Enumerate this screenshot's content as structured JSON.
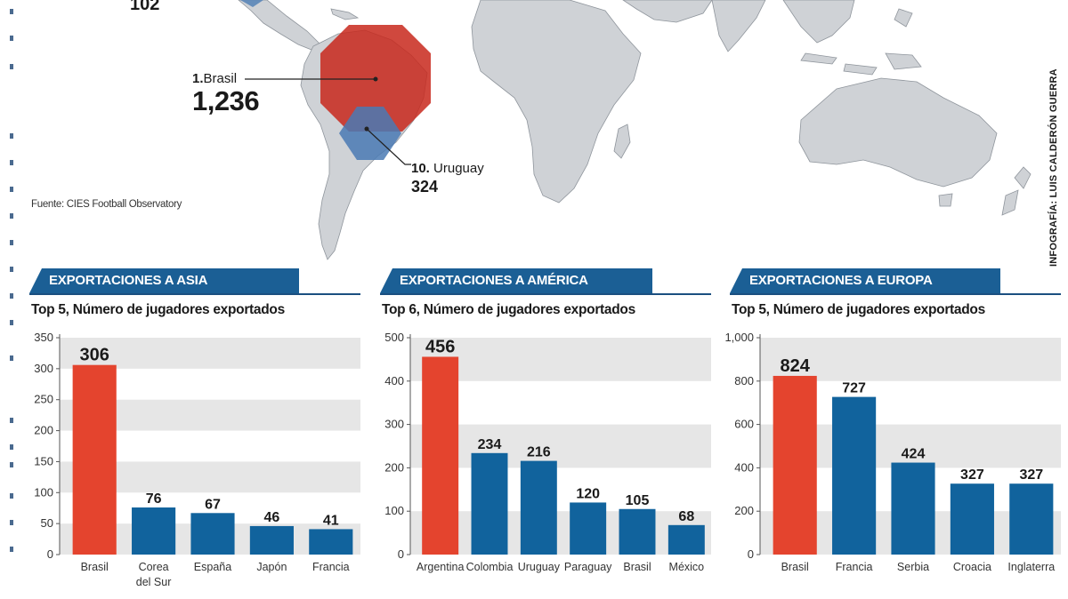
{
  "colors": {
    "accent": "#e4442e",
    "bar": "#11639d",
    "banner": "#1b5f95",
    "band": "#e6e6e6",
    "map_land": "#cfd2d6",
    "map_red": "#c8281c",
    "map_blue": "#5a86b8"
  },
  "map": {
    "labels": [
      {
        "key": "top_partial",
        "value": "102"
      },
      {
        "key": "brasil",
        "rank": "1.",
        "country": "Brasil",
        "value": "1,236"
      },
      {
        "key": "uruguay",
        "rank": "10.",
        "country": "Uruguay",
        "value": "324"
      }
    ],
    "source": "Fuente: CIES Football Observatory",
    "credit": "INFOGRAFÍA: LUIS CALDERÓN GUERRA"
  },
  "panels": [
    {
      "banner": "EXPORTACIONES A ASIA",
      "subtitle": "Top 5, Número de jugadores exportados"
    },
    {
      "banner": "EXPORTACIONES A AMÉRICA",
      "subtitle": "Top 6, Número de jugadores exportados"
    },
    {
      "banner": "EXPORTACIONES A EUROPA",
      "subtitle": "Top 5, Número de jugadores exportados"
    }
  ],
  "chart_data": [
    {
      "type": "bar",
      "title": "EXPORTACIONES A ASIA",
      "subtitle": "Top 5, Número de jugadores exportados",
      "categories": [
        [
          "Brasil"
        ],
        [
          "Corea",
          "del Sur"
        ],
        [
          "España"
        ],
        [
          "Japón"
        ],
        [
          "Francia"
        ]
      ],
      "values": [
        306,
        76,
        67,
        46,
        41
      ],
      "value_labels": [
        "306",
        "76",
        "67",
        "46",
        "41"
      ],
      "highlight": [
        true,
        false,
        false,
        false,
        false
      ],
      "ylim": [
        0,
        350
      ],
      "yticks": [
        0,
        50,
        100,
        150,
        200,
        250,
        300,
        350
      ],
      "ytick_labels": [
        "0",
        "50",
        "100",
        "150",
        "200",
        "250",
        "300",
        "350"
      ],
      "xlabel": "",
      "ylabel": ""
    },
    {
      "type": "bar",
      "title": "EXPORTACIONES A AMÉRICA",
      "subtitle": "Top 6, Número de jugadores exportados",
      "categories": [
        [
          "Argentina"
        ],
        [
          "Colombia"
        ],
        [
          "Uruguay"
        ],
        [
          "Paraguay"
        ],
        [
          "Brasil"
        ],
        [
          "México"
        ]
      ],
      "values": [
        456,
        234,
        216,
        120,
        105,
        68
      ],
      "value_labels": [
        "456",
        "234",
        "216",
        "120",
        "105",
        "68"
      ],
      "highlight": [
        true,
        false,
        false,
        false,
        false,
        false
      ],
      "ylim": [
        0,
        500
      ],
      "yticks": [
        0,
        100,
        200,
        300,
        400,
        500
      ],
      "ytick_labels": [
        "0",
        "100",
        "200",
        "300",
        "400",
        "500"
      ],
      "xlabel": "",
      "ylabel": ""
    },
    {
      "type": "bar",
      "title": "EXPORTACIONES A EUROPA",
      "subtitle": "Top 5, Número de jugadores exportados",
      "categories": [
        [
          "Brasil"
        ],
        [
          "Francia"
        ],
        [
          "Serbia"
        ],
        [
          "Croacia"
        ],
        [
          "Inglaterra"
        ]
      ],
      "values": [
        824,
        727,
        424,
        327,
        327
      ],
      "value_labels": [
        "824",
        "727",
        "424",
        "327",
        "327"
      ],
      "highlight": [
        true,
        false,
        false,
        false,
        false
      ],
      "ylim": [
        0,
        1000
      ],
      "yticks": [
        0,
        200,
        400,
        600,
        800,
        1000
      ],
      "ytick_labels": [
        "0",
        "200",
        "400",
        "600",
        "800",
        "1,000"
      ],
      "xlabel": "",
      "ylabel": ""
    }
  ]
}
